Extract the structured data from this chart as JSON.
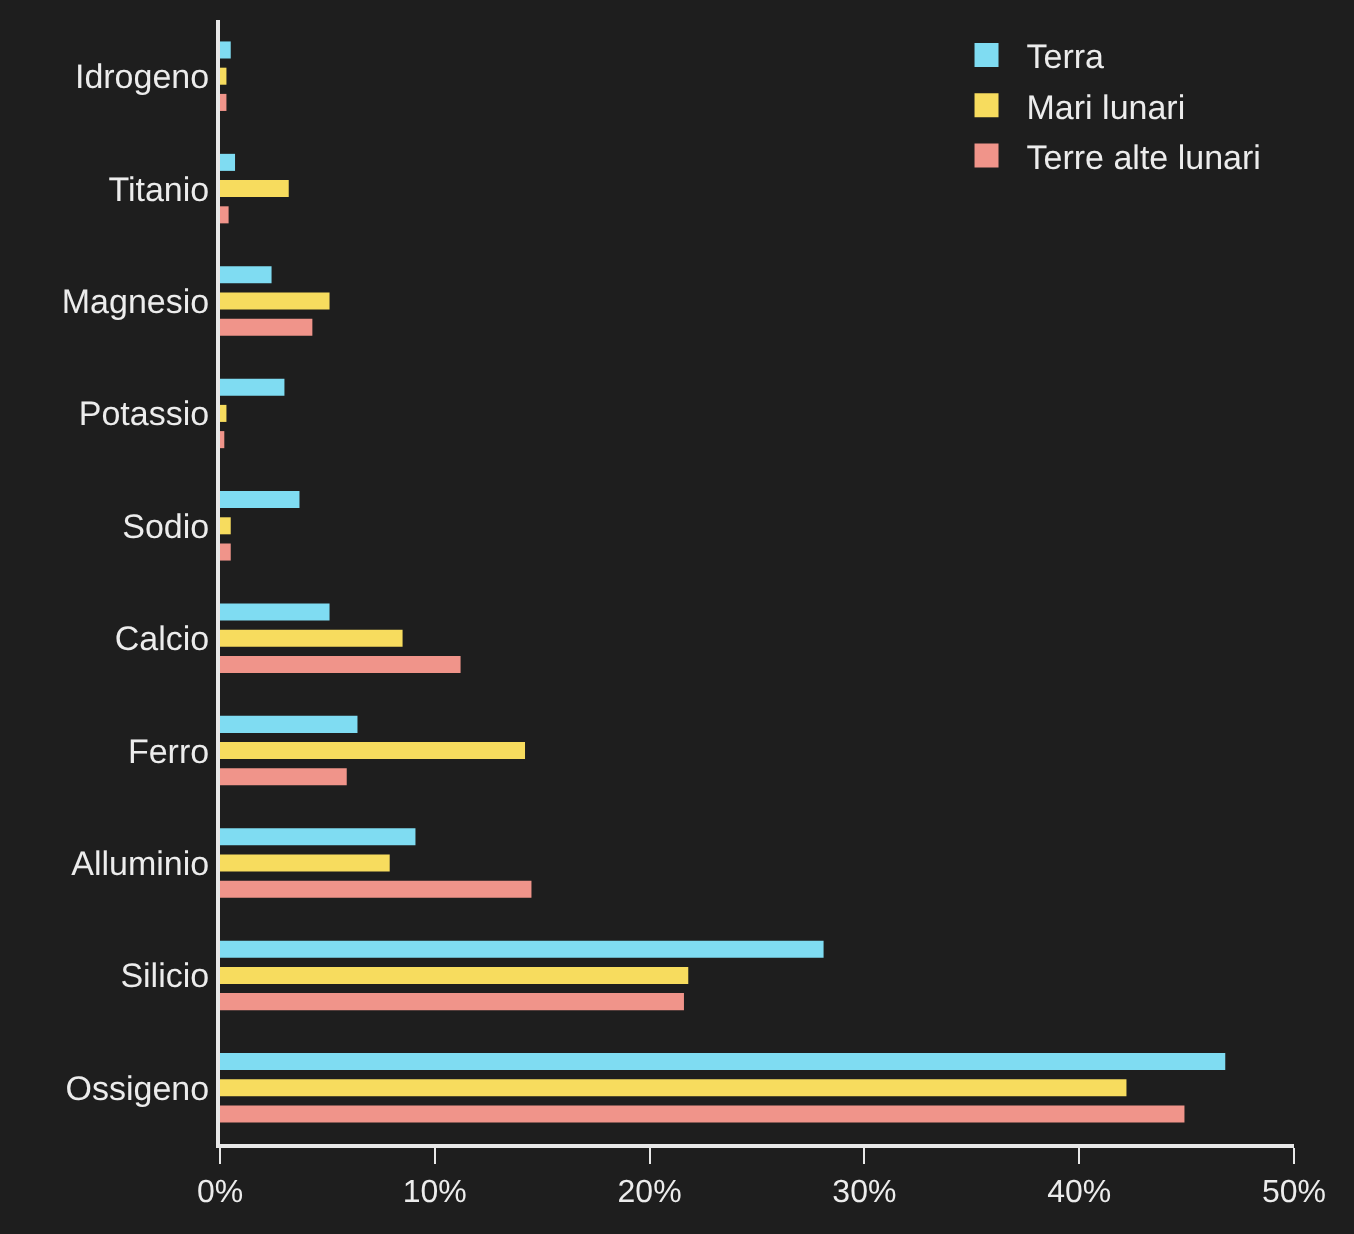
{
  "chart_data": {
    "type": "bar",
    "orientation": "horizontal",
    "categories": [
      "Idrogeno",
      "Titanio",
      "Magnesio",
      "Potassio",
      "Sodio",
      "Calcio",
      "Ferro",
      "Alluminio",
      "Silicio",
      "Ossigeno"
    ],
    "series": [
      {
        "name": "Terra",
        "color": "#7fdcf2",
        "values": [
          0.5,
          0.7,
          2.4,
          3.0,
          3.7,
          5.1,
          6.4,
          9.1,
          28.1,
          46.8
        ]
      },
      {
        "name": "Mari lunari",
        "color": "#f7dc5e",
        "values": [
          0.3,
          3.2,
          5.1,
          0.3,
          0.5,
          8.5,
          14.2,
          7.9,
          21.8,
          42.2
        ]
      },
      {
        "name": "Terre alte lunari",
        "color": "#f0948a",
        "values": [
          0.3,
          0.4,
          4.3,
          0.2,
          0.5,
          11.2,
          5.9,
          14.5,
          21.6,
          44.9
        ]
      }
    ],
    "xlim": [
      0,
      50
    ],
    "xticks": [
      {
        "value": 0,
        "label": "0%"
      },
      {
        "value": 10,
        "label": "10%"
      },
      {
        "value": 20,
        "label": "20%"
      },
      {
        "value": 30,
        "label": "30%"
      },
      {
        "value": 40,
        "label": "40%"
      },
      {
        "value": 50,
        "label": "50%"
      }
    ],
    "legend": "top right"
  }
}
